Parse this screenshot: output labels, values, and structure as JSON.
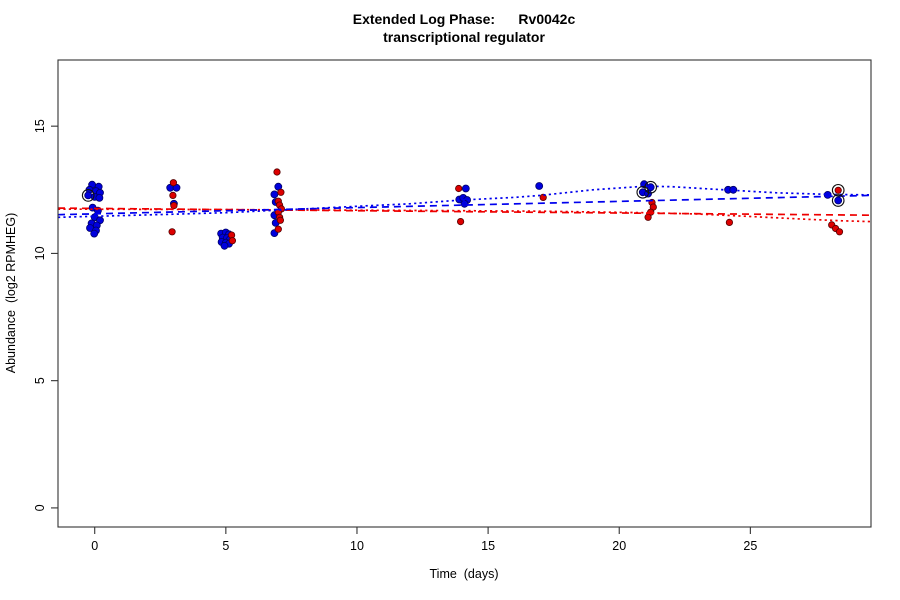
{
  "chart_data": {
    "type": "scatter",
    "title": "Extended Log Phase:      Rv0042c",
    "subtitle": "transcriptional regulator",
    "xlabel": "Time  (days)",
    "ylabel": "Abundance  (log2 RPMHEG)",
    "xlim": [
      -1.4,
      29.6
    ],
    "ylim": [
      -0.75,
      17.6
    ],
    "xticks": [
      0,
      5,
      10,
      15,
      20,
      25
    ],
    "yticks": [
      0,
      5,
      10,
      15
    ],
    "grid": false,
    "legend": null,
    "colors": {
      "blue": "#0000dd",
      "blue_stroke": "#000066",
      "red": "#dd0000",
      "red_stroke": "#550000",
      "frame": "#333333",
      "highlight_ring": "#111111"
    },
    "series": [
      {
        "name": "condition-blue",
        "color": "#0000dd",
        "points": [
          [
            -0.1,
            12.7
          ],
          [
            0.15,
            12.62
          ],
          [
            -0.2,
            12.5
          ],
          [
            0.05,
            12.45
          ],
          [
            0.2,
            12.38
          ],
          [
            -0.25,
            12.28
          ],
          [
            0.0,
            12.22
          ],
          [
            0.18,
            12.18
          ],
          [
            -0.08,
            11.8
          ],
          [
            0.12,
            11.68
          ],
          [
            0.0,
            11.42
          ],
          [
            0.2,
            11.3
          ],
          [
            -0.12,
            11.18
          ],
          [
            0.08,
            11.1
          ],
          [
            -0.18,
            11.0
          ],
          [
            0.05,
            10.9
          ],
          [
            -0.02,
            10.78
          ],
          [
            2.88,
            12.58
          ],
          [
            3.12,
            12.58
          ],
          [
            3.02,
            11.95
          ],
          [
            4.82,
            10.78
          ],
          [
            5.0,
            10.82
          ],
          [
            5.12,
            10.75
          ],
          [
            4.88,
            10.62
          ],
          [
            5.04,
            10.6
          ],
          [
            5.16,
            10.55
          ],
          [
            4.84,
            10.45
          ],
          [
            5.0,
            10.42
          ],
          [
            5.12,
            10.38
          ],
          [
            4.95,
            10.3
          ],
          [
            7.0,
            12.62
          ],
          [
            6.85,
            12.32
          ],
          [
            6.9,
            12.02
          ],
          [
            6.85,
            11.5
          ],
          [
            6.9,
            11.2
          ],
          [
            6.85,
            10.8
          ],
          [
            14.15,
            12.55
          ],
          [
            13.9,
            12.12
          ],
          [
            14.05,
            12.18
          ],
          [
            14.2,
            12.1
          ],
          [
            14.1,
            11.95
          ],
          [
            16.95,
            12.65
          ],
          [
            20.95,
            12.72
          ],
          [
            21.2,
            12.6
          ],
          [
            20.9,
            12.4
          ],
          [
            21.1,
            12.35
          ],
          [
            24.15,
            12.5
          ],
          [
            24.35,
            12.5
          ],
          [
            27.95,
            12.3
          ],
          [
            28.35,
            12.08
          ]
        ]
      },
      {
        "name": "condition-red",
        "color": "#dd0000",
        "points": [
          [
            3.0,
            12.78
          ],
          [
            2.98,
            12.28
          ],
          [
            3.02,
            11.88
          ],
          [
            2.95,
            10.85
          ],
          [
            5.22,
            10.72
          ],
          [
            5.25,
            10.5
          ],
          [
            6.95,
            13.2
          ],
          [
            7.1,
            12.4
          ],
          [
            7.0,
            12.05
          ],
          [
            7.05,
            11.9
          ],
          [
            7.12,
            11.75
          ],
          [
            7.0,
            11.62
          ],
          [
            7.05,
            11.42
          ],
          [
            7.08,
            11.3
          ],
          [
            7.0,
            10.95
          ],
          [
            13.88,
            12.55
          ],
          [
            13.95,
            11.25
          ],
          [
            17.1,
            12.2
          ],
          [
            21.25,
            12.0
          ],
          [
            21.3,
            11.82
          ],
          [
            21.2,
            11.62
          ],
          [
            21.1,
            11.42
          ],
          [
            24.2,
            11.22
          ],
          [
            28.35,
            12.48
          ],
          [
            28.1,
            11.12
          ],
          [
            28.25,
            10.98
          ],
          [
            28.4,
            10.85
          ]
        ]
      }
    ],
    "highlighted_points": [
      [
        -0.25,
        12.28
      ],
      [
        20.9,
        12.4
      ],
      [
        21.2,
        12.6
      ],
      [
        28.35,
        12.48
      ],
      [
        28.35,
        12.08
      ]
    ],
    "trend_lines": [
      {
        "name": "red-dashed-fit",
        "color": "#ee0000",
        "style": "dashed",
        "points": [
          [
            -1.4,
            11.78
          ],
          [
            29.6,
            11.5
          ]
        ]
      },
      {
        "name": "red-dotted-fit",
        "color": "#ee0000",
        "style": "dotted",
        "points": [
          [
            -1.4,
            11.74
          ],
          [
            5,
            11.72
          ],
          [
            10,
            11.7
          ],
          [
            14,
            11.68
          ],
          [
            17,
            11.66
          ],
          [
            21,
            11.6
          ],
          [
            23,
            11.55
          ],
          [
            25,
            11.45
          ],
          [
            27,
            11.35
          ],
          [
            28.5,
            11.28
          ],
          [
            29.6,
            11.25
          ]
        ]
      },
      {
        "name": "blue-dashed-fit",
        "color": "#0000ee",
        "style": "dashed",
        "points": [
          [
            -1.4,
            11.52
          ],
          [
            29.6,
            12.28
          ]
        ]
      },
      {
        "name": "blue-dotted-fit",
        "color": "#0000ee",
        "style": "dotted",
        "points": [
          [
            -1.4,
            11.42
          ],
          [
            0,
            11.46
          ],
          [
            3,
            11.54
          ],
          [
            5,
            11.6
          ],
          [
            7,
            11.7
          ],
          [
            10,
            11.85
          ],
          [
            12,
            11.95
          ],
          [
            14,
            12.1
          ],
          [
            16,
            12.2
          ],
          [
            17,
            12.28
          ],
          [
            19,
            12.5
          ],
          [
            21,
            12.64
          ],
          [
            22,
            12.62
          ],
          [
            24,
            12.5
          ],
          [
            26,
            12.38
          ],
          [
            28,
            12.32
          ],
          [
            29.6,
            12.3
          ]
        ]
      }
    ]
  }
}
